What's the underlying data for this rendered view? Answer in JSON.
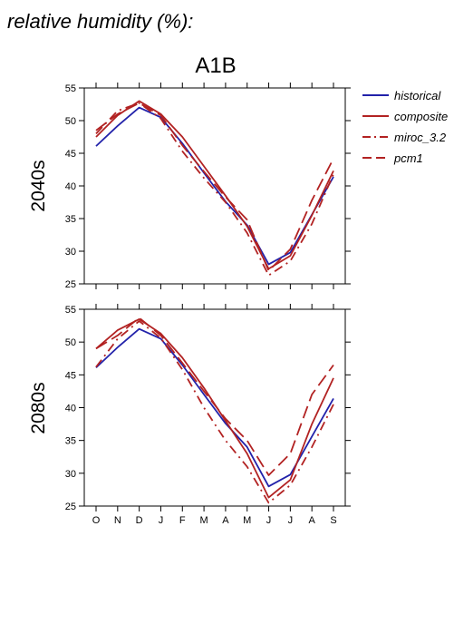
{
  "figure": {
    "title": "relative humidity (%):",
    "scenario": "A1B"
  },
  "legend": {
    "position": "right",
    "items": [
      {
        "label": "historical",
        "color": "#2222aa",
        "dash": "solid"
      },
      {
        "label": "composite",
        "color": "#b22222",
        "dash": "solid"
      },
      {
        "label": "miroc_3.2",
        "color": "#b22222",
        "dash": "dashdot"
      },
      {
        "label": "pcm1",
        "color": "#b22222",
        "dash": "dashed"
      }
    ]
  },
  "chart_data": [
    {
      "type": "line",
      "title": "2040s",
      "x": [
        "O",
        "N",
        "D",
        "J",
        "F",
        "M",
        "A",
        "M",
        "J",
        "J",
        "A",
        "S"
      ],
      "ylim": [
        25,
        55
      ],
      "yticks": [
        25,
        30,
        35,
        40,
        45,
        50,
        55
      ],
      "series": [
        {
          "name": "historical",
          "values": [
            46.1,
            49.2,
            52.0,
            50.5,
            46.5,
            42.0,
            37.6,
            34.0,
            28.0,
            29.8,
            35.6,
            41.4
          ]
        },
        {
          "name": "composite",
          "values": [
            47.5,
            50.8,
            53.0,
            51.0,
            47.5,
            43.0,
            38.5,
            33.8,
            27.3,
            29.3,
            35.5,
            42.3
          ]
        },
        {
          "name": "miroc_3.2",
          "values": [
            48.0,
            51.5,
            52.7,
            50.3,
            45.3,
            41.2,
            37.5,
            32.8,
            26.3,
            28.5,
            34.2,
            41.8
          ]
        },
        {
          "name": "pcm1",
          "values": [
            48.5,
            51.0,
            52.7,
            50.8,
            46.2,
            42.2,
            38.3,
            34.8,
            27.0,
            30.3,
            37.8,
            44.2
          ]
        }
      ]
    },
    {
      "type": "line",
      "title": "2080s",
      "x": [
        "O",
        "N",
        "D",
        "J",
        "F",
        "M",
        "A",
        "M",
        "J",
        "J",
        "A",
        "S"
      ],
      "ylim": [
        25,
        55
      ],
      "yticks": [
        25,
        30,
        35,
        40,
        45,
        50,
        55
      ],
      "series": [
        {
          "name": "historical",
          "values": [
            46.1,
            49.2,
            52.0,
            50.5,
            46.5,
            42.0,
            37.6,
            34.0,
            28.0,
            29.8,
            35.6,
            41.4
          ]
        },
        {
          "name": "composite",
          "values": [
            49.0,
            51.8,
            53.5,
            51.3,
            47.6,
            43.0,
            38.0,
            33.0,
            26.3,
            29.0,
            37.5,
            44.5
          ]
        },
        {
          "name": "miroc_3.2",
          "values": [
            46.2,
            50.5,
            53.2,
            50.6,
            45.8,
            40.0,
            35.0,
            31.0,
            25.5,
            28.2,
            34.0,
            40.5
          ]
        },
        {
          "name": "pcm1",
          "values": [
            49.0,
            51.0,
            53.7,
            51.0,
            46.8,
            42.5,
            38.3,
            35.0,
            29.7,
            33.0,
            42.0,
            46.5
          ]
        }
      ]
    }
  ]
}
